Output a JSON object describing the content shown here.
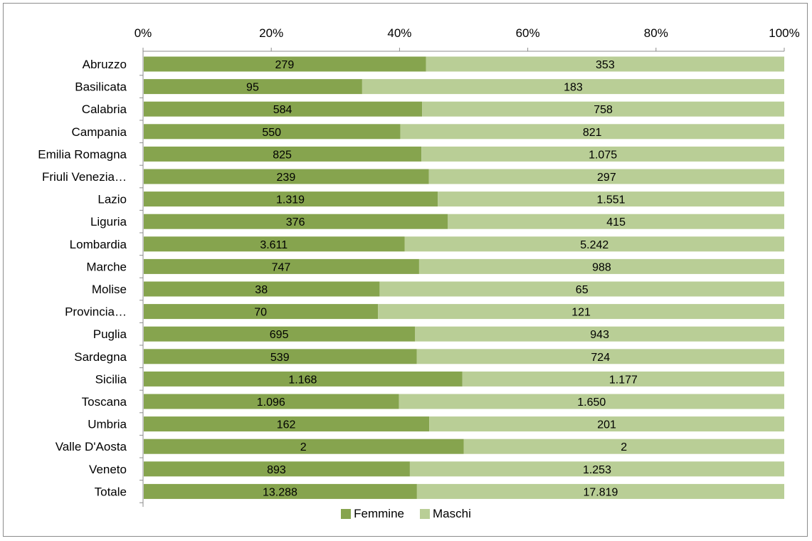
{
  "chart_data": {
    "type": "bar",
    "orientation": "horizontal",
    "stacked": "percent",
    "title": "",
    "xlabel": "",
    "ylabel": "",
    "xlim": [
      0,
      100
    ],
    "x_ticks": [
      "0%",
      "20%",
      "40%",
      "60%",
      "80%",
      "100%"
    ],
    "categories": [
      "Abruzzo",
      "Basilicata",
      "Calabria",
      "Campania",
      "Emilia Romagna",
      "Friuli Venezia…",
      "Lazio",
      "Liguria",
      "Lombardia",
      "Marche",
      "Molise",
      "Provincia…",
      "Puglia",
      "Sardegna",
      "Sicilia",
      "Toscana",
      "Umbria",
      "Valle D'Aosta",
      "Veneto",
      "Totale"
    ],
    "series": [
      {
        "name": "Femmine",
        "color": "#86A44E",
        "values": [
          279,
          95,
          584,
          550,
          825,
          239,
          1319,
          376,
          3611,
          747,
          38,
          70,
          695,
          539,
          1168,
          1096,
          162,
          2,
          893,
          13288
        ],
        "labels": [
          "279",
          "95",
          "584",
          "550",
          "825",
          "239",
          "1.319",
          "376",
          "3.611",
          "747",
          "38",
          "70",
          "695",
          "539",
          "1.168",
          "1.096",
          "162",
          "2",
          "893",
          "13.288"
        ]
      },
      {
        "name": "Maschi",
        "color": "#B9CE96",
        "values": [
          353,
          183,
          758,
          821,
          1075,
          297,
          1551,
          415,
          5242,
          988,
          65,
          121,
          943,
          724,
          1177,
          1650,
          201,
          2,
          1253,
          17819
        ],
        "labels": [
          "353",
          "183",
          "758",
          "821",
          "1.075",
          "297",
          "1.551",
          "415",
          "5.242",
          "988",
          "65",
          "121",
          "943",
          "724",
          "1.177",
          "1.650",
          "201",
          "2",
          "1.253",
          "17.819"
        ]
      }
    ],
    "legend_position": "bottom",
    "grid": false
  }
}
